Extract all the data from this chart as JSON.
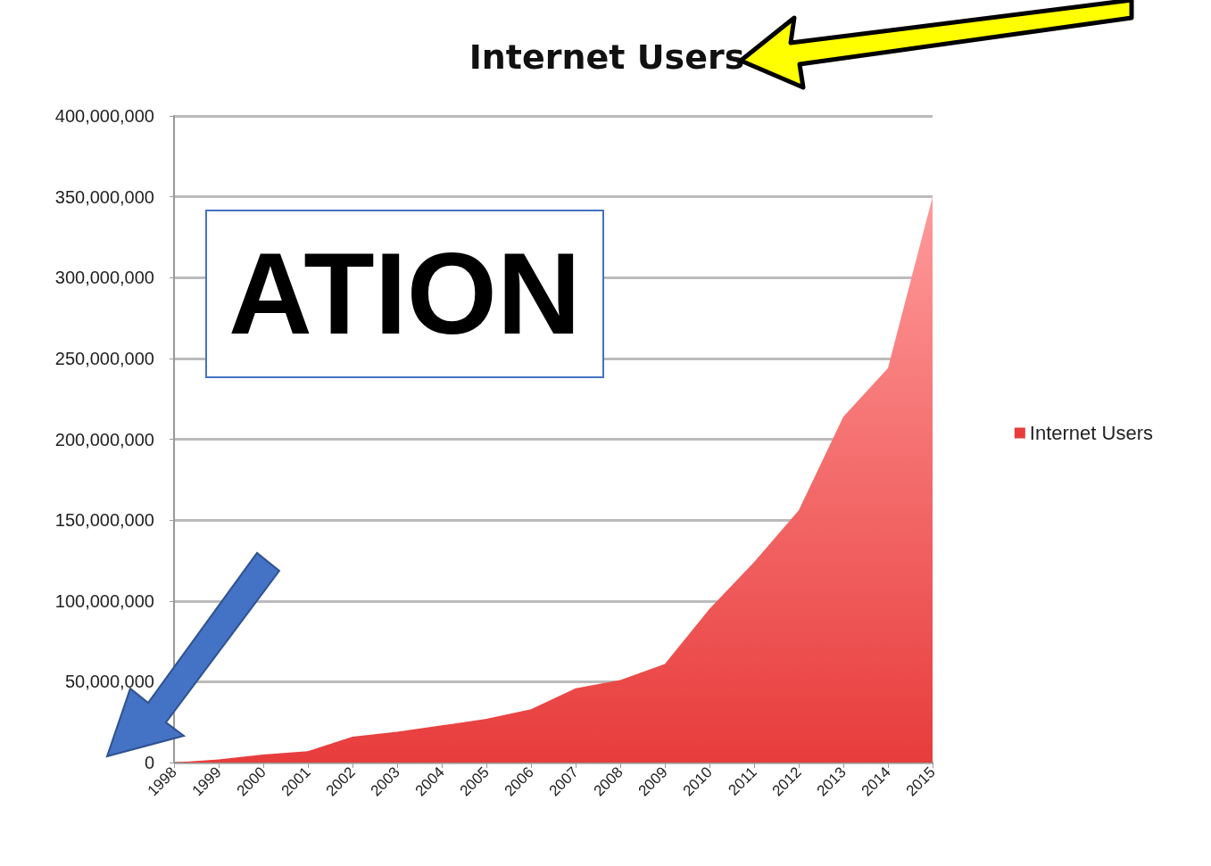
{
  "chart_data": {
    "type": "area",
    "title": "Internet Users",
    "categories": [
      "1998",
      "1999",
      "2000",
      "2001",
      "2002",
      "2003",
      "2004",
      "2005",
      "2006",
      "2007",
      "2008",
      "2009",
      "2010",
      "2011",
      "2012",
      "2013",
      "2014",
      "2015"
    ],
    "series": [
      {
        "name": "Internet Users",
        "color": "#e83c3c",
        "values": [
          0,
          2000000,
          5000000,
          7000000,
          16000000,
          19000000,
          23000000,
          27000000,
          33000000,
          46000000,
          51000000,
          61000000,
          95000000,
          124000000,
          156000000,
          214000000,
          244000000,
          350000000
        ]
      }
    ],
    "ylim": [
      0,
      400000000
    ],
    "yticks": [
      0,
      {
        "value": 50000000,
        "label": "50,000,000"
      },
      {
        "value": 100000000,
        "label": "100,000,000"
      },
      {
        "value": 150000000,
        "label": "150,000,000"
      },
      {
        "value": 200000000,
        "label": "200,000,000"
      },
      {
        "value": 250000000,
        "label": "250,000,000"
      },
      {
        "value": 300000000,
        "label": "300,000,000"
      },
      {
        "value": 350000000,
        "label": "350,000,000"
      },
      {
        "value": 400000000,
        "label": "400,000,000"
      }
    ],
    "grid": "y",
    "legend": "right",
    "annotations": [
      "ATION"
    ]
  }
}
